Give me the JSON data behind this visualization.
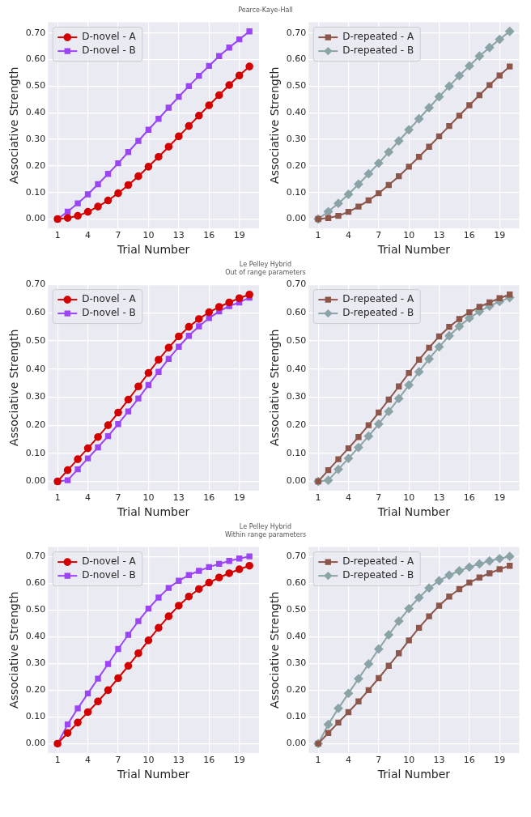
{
  "chart_data": [
    {
      "type": "line",
      "title": "Pearce-Kaye-Hall",
      "xlabel": "Trial Number",
      "ylabel": "Associative Strength",
      "x": [
        1,
        2,
        3,
        4,
        5,
        6,
        7,
        8,
        9,
        10,
        11,
        12,
        13,
        14,
        15,
        16,
        17,
        18,
        19,
        20
      ],
      "xlim": [
        0.05,
        20.95
      ],
      "xticks": [
        1,
        4,
        7,
        10,
        13,
        16,
        19
      ],
      "ylim": [
        -0.035,
        0.74
      ],
      "yticks": [
        {
          "value": 0,
          "label": "0.00"
        },
        {
          "value": 0.1,
          "label": "0.10"
        },
        {
          "value": 0.2,
          "label": "0.20"
        },
        {
          "value": 0.3,
          "label": "0.30"
        },
        {
          "value": 0.4,
          "label": "0.40"
        },
        {
          "value": 0.5,
          "label": "0.50"
        },
        {
          "value": 0.6,
          "label": "0.60"
        },
        {
          "value": 0.7,
          "label": "0.70"
        }
      ],
      "grid": true,
      "legend": "top left",
      "series": [
        {
          "name": "D-novel - A",
          "color": "#d40000",
          "marker": "circle",
          "values": [
            0,
            0.004,
            0.012,
            0.027,
            0.047,
            0.07,
            0.097,
            0.128,
            0.161,
            0.197,
            0.234,
            0.272,
            0.311,
            0.35,
            0.389,
            0.428,
            0.466,
            0.504,
            0.54,
            0.574
          ]
        },
        {
          "name": "D-novel - B",
          "color": "#9b45f5",
          "marker": "square",
          "values": [
            0,
            0.028,
            0.059,
            0.093,
            0.131,
            0.17,
            0.21,
            0.252,
            0.294,
            0.336,
            0.377,
            0.419,
            0.46,
            0.5,
            0.539,
            0.576,
            0.613,
            0.645,
            0.676,
            0.706
          ]
        }
      ]
    },
    {
      "type": "line",
      "xlabel": "Trial Number",
      "ylabel": "Associative Strength",
      "x": [
        1,
        2,
        3,
        4,
        5,
        6,
        7,
        8,
        9,
        10,
        11,
        12,
        13,
        14,
        15,
        16,
        17,
        18,
        19,
        20
      ],
      "xlim": [
        0.05,
        20.95
      ],
      "xticks": [
        1,
        4,
        7,
        10,
        13,
        16,
        19
      ],
      "ylim": [
        -0.035,
        0.74
      ],
      "yticks": [
        {
          "value": 0,
          "label": "0.00"
        },
        {
          "value": 0.1,
          "label": "0.10"
        },
        {
          "value": 0.2,
          "label": "0.20"
        },
        {
          "value": 0.3,
          "label": "0.30"
        },
        {
          "value": 0.4,
          "label": "0.40"
        },
        {
          "value": 0.5,
          "label": "0.50"
        },
        {
          "value": 0.6,
          "label": "0.60"
        },
        {
          "value": 0.7,
          "label": "0.70"
        }
      ],
      "grid": true,
      "legend": "top left",
      "series": [
        {
          "name": "D-repeated - A",
          "color": "#8c564b",
          "marker": "square",
          "values": [
            0,
            0.004,
            0.012,
            0.027,
            0.047,
            0.07,
            0.097,
            0.128,
            0.161,
            0.197,
            0.234,
            0.272,
            0.311,
            0.35,
            0.389,
            0.428,
            0.466,
            0.504,
            0.54,
            0.574
          ]
        },
        {
          "name": "D-repeated - B",
          "color": "#8aa3a6",
          "marker": "diamond",
          "values": [
            0,
            0.028,
            0.059,
            0.093,
            0.131,
            0.17,
            0.21,
            0.252,
            0.294,
            0.336,
            0.377,
            0.419,
            0.46,
            0.5,
            0.539,
            0.576,
            0.613,
            0.645,
            0.676,
            0.706
          ]
        }
      ]
    },
    {
      "type": "line",
      "title": "Le Pelley Hybrid",
      "subtitle": "Out of range parameters",
      "xlabel": "Trial Number",
      "ylabel": "Associative Strength",
      "x": [
        1,
        2,
        3,
        4,
        5,
        6,
        7,
        8,
        9,
        10,
        11,
        12,
        13,
        14,
        15,
        16,
        17,
        18,
        19,
        20
      ],
      "xlim": [
        0.05,
        20.95
      ],
      "xticks": [
        1,
        4,
        7,
        10,
        13,
        16,
        19
      ],
      "ylim": [
        -0.033,
        0.7
      ],
      "yticks": [
        {
          "value": 0,
          "label": "0.00"
        },
        {
          "value": 0.1,
          "label": "0.10"
        },
        {
          "value": 0.2,
          "label": "0.20"
        },
        {
          "value": 0.3,
          "label": "0.30"
        },
        {
          "value": 0.4,
          "label": "0.40"
        },
        {
          "value": 0.5,
          "label": "0.50"
        },
        {
          "value": 0.6,
          "label": "0.60"
        },
        {
          "value": 0.7,
          "label": "0.70"
        }
      ],
      "grid": true,
      "legend": "top left",
      "series": [
        {
          "name": "D-novel - A",
          "color": "#d40000",
          "marker": "circle",
          "values": [
            0,
            0.04,
            0.079,
            0.118,
            0.158,
            0.2,
            0.245,
            0.291,
            0.338,
            0.386,
            0.433,
            0.476,
            0.516,
            0.55,
            0.578,
            0.602,
            0.621,
            0.637,
            0.652,
            0.665
          ]
        },
        {
          "name": "D-novel - B",
          "color": "#9b45f5",
          "marker": "square",
          "values": [
            0,
            0.004,
            0.043,
            0.082,
            0.121,
            0.161,
            0.204,
            0.249,
            0.295,
            0.343,
            0.39,
            0.436,
            0.479,
            0.518,
            0.552,
            0.581,
            0.605,
            0.624,
            0.637,
            0.654
          ]
        }
      ]
    },
    {
      "type": "line",
      "xlabel": "Trial Number",
      "ylabel": "Associative Strength",
      "x": [
        1,
        2,
        3,
        4,
        5,
        6,
        7,
        8,
        9,
        10,
        11,
        12,
        13,
        14,
        15,
        16,
        17,
        18,
        19,
        20
      ],
      "xlim": [
        0.05,
        20.95
      ],
      "xticks": [
        1,
        4,
        7,
        10,
        13,
        16,
        19
      ],
      "ylim": [
        -0.033,
        0.7
      ],
      "yticks": [
        {
          "value": 0,
          "label": "0.00"
        },
        {
          "value": 0.1,
          "label": "0.10"
        },
        {
          "value": 0.2,
          "label": "0.20"
        },
        {
          "value": 0.3,
          "label": "0.30"
        },
        {
          "value": 0.4,
          "label": "0.40"
        },
        {
          "value": 0.5,
          "label": "0.50"
        },
        {
          "value": 0.6,
          "label": "0.60"
        },
        {
          "value": 0.7,
          "label": "0.70"
        }
      ],
      "grid": true,
      "legend": "top left",
      "series": [
        {
          "name": "D-repeated - A",
          "color": "#8c564b",
          "marker": "square",
          "values": [
            0,
            0.04,
            0.079,
            0.118,
            0.158,
            0.2,
            0.245,
            0.291,
            0.338,
            0.386,
            0.433,
            0.476,
            0.516,
            0.55,
            0.578,
            0.602,
            0.621,
            0.637,
            0.652,
            0.665
          ]
        },
        {
          "name": "D-repeated - B",
          "color": "#8aa3a6",
          "marker": "diamond",
          "values": [
            0,
            0.004,
            0.043,
            0.082,
            0.121,
            0.161,
            0.204,
            0.249,
            0.295,
            0.343,
            0.39,
            0.436,
            0.479,
            0.518,
            0.552,
            0.581,
            0.605,
            0.624,
            0.64,
            0.654
          ]
        }
      ]
    },
    {
      "type": "line",
      "title": "Le Pelley Hybrid",
      "subtitle": "Within range parameters",
      "xlabel": "Trial Number",
      "ylabel": "Associative Strength",
      "x": [
        1,
        2,
        3,
        4,
        5,
        6,
        7,
        8,
        9,
        10,
        11,
        12,
        13,
        14,
        15,
        16,
        17,
        18,
        19,
        20
      ],
      "xlim": [
        0.05,
        20.95
      ],
      "xticks": [
        1,
        4,
        7,
        10,
        13,
        16,
        19
      ],
      "ylim": [
        -0.035,
        0.735
      ],
      "yticks": [
        {
          "value": 0,
          "label": "0.00"
        },
        {
          "value": 0.1,
          "label": "0.10"
        },
        {
          "value": 0.2,
          "label": "0.20"
        },
        {
          "value": 0.3,
          "label": "0.30"
        },
        {
          "value": 0.4,
          "label": "0.40"
        },
        {
          "value": 0.5,
          "label": "0.50"
        },
        {
          "value": 0.6,
          "label": "0.60"
        },
        {
          "value": 0.7,
          "label": "0.70"
        }
      ],
      "grid": true,
      "legend": "top left",
      "series": [
        {
          "name": "D-novel - A",
          "color": "#d40000",
          "marker": "circle",
          "values": [
            0,
            0.04,
            0.079,
            0.118,
            0.158,
            0.2,
            0.245,
            0.291,
            0.338,
            0.386,
            0.433,
            0.476,
            0.516,
            0.55,
            0.578,
            0.602,
            0.621,
            0.637,
            0.652,
            0.665
          ]
        },
        {
          "name": "D-novel - B",
          "color": "#9b45f5",
          "marker": "square",
          "values": [
            0,
            0.072,
            0.132,
            0.188,
            0.243,
            0.298,
            0.354,
            0.407,
            0.458,
            0.505,
            0.546,
            0.582,
            0.609,
            0.63,
            0.646,
            0.66,
            0.672,
            0.683,
            0.692,
            0.7
          ]
        }
      ]
    },
    {
      "type": "line",
      "xlabel": "Trial Number",
      "ylabel": "Associative Strength",
      "x": [
        1,
        2,
        3,
        4,
        5,
        6,
        7,
        8,
        9,
        10,
        11,
        12,
        13,
        14,
        15,
        16,
        17,
        18,
        19,
        20
      ],
      "xlim": [
        0.05,
        20.95
      ],
      "xticks": [
        1,
        4,
        7,
        10,
        13,
        16,
        19
      ],
      "ylim": [
        -0.035,
        0.735
      ],
      "yticks": [
        {
          "value": 0,
          "label": "0.00"
        },
        {
          "value": 0.1,
          "label": "0.10"
        },
        {
          "value": 0.2,
          "label": "0.20"
        },
        {
          "value": 0.3,
          "label": "0.30"
        },
        {
          "value": 0.4,
          "label": "0.40"
        },
        {
          "value": 0.5,
          "label": "0.50"
        },
        {
          "value": 0.6,
          "label": "0.60"
        },
        {
          "value": 0.7,
          "label": "0.70"
        }
      ],
      "grid": true,
      "legend": "top left",
      "series": [
        {
          "name": "D-repeated - A",
          "color": "#8c564b",
          "marker": "square",
          "values": [
            0,
            0.04,
            0.079,
            0.118,
            0.158,
            0.2,
            0.245,
            0.291,
            0.338,
            0.386,
            0.433,
            0.476,
            0.516,
            0.55,
            0.578,
            0.602,
            0.621,
            0.637,
            0.652,
            0.665
          ]
        },
        {
          "name": "D-repeated - B",
          "color": "#8aa3a6",
          "marker": "diamond",
          "values": [
            0,
            0.072,
            0.132,
            0.188,
            0.243,
            0.298,
            0.354,
            0.407,
            0.458,
            0.505,
            0.546,
            0.582,
            0.609,
            0.63,
            0.646,
            0.66,
            0.672,
            0.683,
            0.692,
            0.7
          ]
        }
      ]
    }
  ]
}
